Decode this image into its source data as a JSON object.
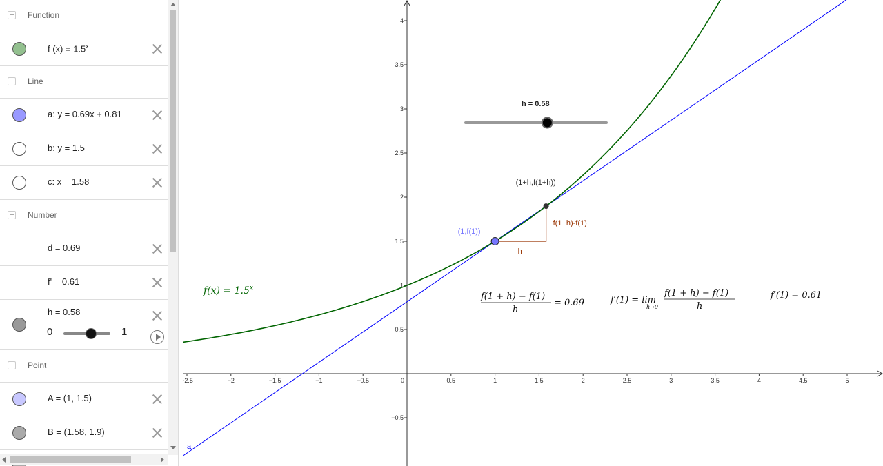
{
  "algebra": {
    "groups": [
      {
        "label": "Function",
        "items": [
          {
            "text": "f (x)  =  1.5",
            "sup": "x",
            "color": "#93c08f"
          }
        ]
      },
      {
        "label": "Line",
        "items": [
          {
            "text": "a: y = 0.69x + 0.81",
            "color": "#9999ff"
          },
          {
            "text": "b: y = 1.5",
            "color": "#ffffff"
          },
          {
            "text": "c: x = 1.58",
            "color": "#ffffff"
          }
        ]
      },
      {
        "label": "Number",
        "items": [
          {
            "text": "d = 0.69"
          },
          {
            "text": "f' = 0.61"
          }
        ]
      },
      {
        "label": "Point",
        "items": [
          {
            "text": "A = (1, 1.5)",
            "color": "#c8c8ff"
          },
          {
            "text": "B = (1.58, 1.9)",
            "color": "#aaaaaa"
          }
        ]
      }
    ],
    "slider": {
      "label": "h = 0.58",
      "min": "0",
      "max": "1",
      "value": 0.58,
      "marble_color": "#999999"
    }
  },
  "graph": {
    "x_ticks": [
      "−2.5",
      "−2",
      "−1.5",
      "−1",
      "−0.5",
      "0",
      "0.5",
      "1",
      "1.5",
      "2",
      "2.5",
      "3",
      "3.5",
      "4",
      "4.5",
      "5"
    ],
    "y_ticks": [
      "−0.5",
      "0.5",
      "1",
      "1.5",
      "2",
      "2.5",
      "3",
      "3.5",
      "4"
    ],
    "slider_label": "h = 0.58",
    "slider_value": 0.58,
    "point_B_label": "(1+h,f(1+h))",
    "point_A_label": "(1,f(1))",
    "rise_label": "f(1+h)-f(1)",
    "run_label": "h",
    "func_label_lhs": "f(x)  =  1.5",
    "func_label_sup": "x",
    "line_label": "a",
    "formula1_num": "f(1 + h) − f(1)",
    "formula1_den": "h",
    "formula1_rhs": "= 0.69",
    "formula2_lhs": "f′(1) = lim",
    "formula2_sub": "h→0",
    "formula2_num": "f(1 + h) − f(1)",
    "formula2_den": "h",
    "formula3": "f′(1) = 0.61",
    "colors": {
      "function": "#006400",
      "line": "#0000ff",
      "triangle": "#993300",
      "pointA": "#7777ff",
      "pointB": "#333333"
    }
  }
}
